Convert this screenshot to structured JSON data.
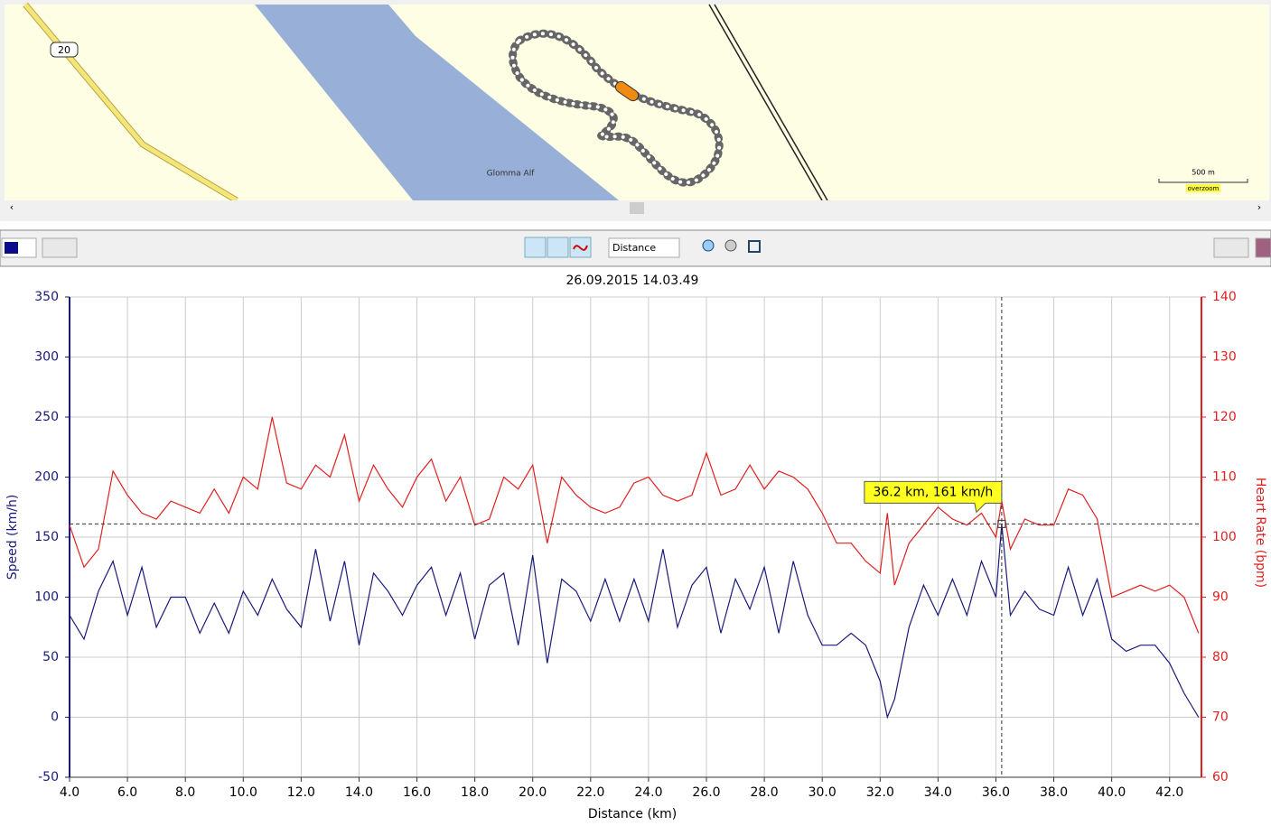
{
  "map": {
    "road_label": "20",
    "place_label": "Glomma Alf",
    "scale_label": "500 m",
    "zoom_label": "overzoom"
  },
  "toolbar": {
    "x_axis_select": "Distance"
  },
  "chart_data": {
    "type": "line",
    "title": "26.09.2015 14.03.49",
    "x_label": "Distance (km)",
    "y_label": "Speed (km/h)",
    "y2_label": "Heart Rate (bpm)",
    "x": [
      4,
      4.5,
      5,
      5.5,
      6,
      6.5,
      7,
      7.5,
      8,
      8.5,
      9,
      9.5,
      10,
      10.5,
      11,
      11.5,
      12,
      12.5,
      13,
      13.5,
      14,
      14.5,
      15,
      15.5,
      16,
      16.5,
      17,
      17.5,
      18,
      18.5,
      19,
      19.5,
      20,
      20.5,
      21,
      21.5,
      22,
      22.5,
      23,
      23.5,
      24,
      24.5,
      25,
      25.5,
      26,
      26.5,
      27,
      27.5,
      28,
      28.5,
      29,
      29.5,
      30,
      30.5,
      31,
      31.5,
      32,
      32.25,
      32.5,
      33,
      33.5,
      34,
      34.5,
      35,
      35.5,
      36,
      36.2,
      36.5,
      37,
      37.5,
      38,
      38.5,
      39,
      39.5,
      40,
      40.5,
      41,
      41.5,
      42,
      42.5,
      43
    ],
    "series": [
      {
        "name": "Speed",
        "color": "#1a1a7a",
        "values": [
          85,
          65,
          105,
          130,
          85,
          125,
          75,
          100,
          100,
          70,
          95,
          70,
          105,
          85,
          115,
          90,
          75,
          140,
          80,
          130,
          60,
          120,
          105,
          85,
          110,
          125,
          85,
          120,
          65,
          110,
          120,
          60,
          135,
          45,
          115,
          105,
          80,
          115,
          80,
          115,
          80,
          140,
          75,
          110,
          125,
          70,
          115,
          90,
          125,
          70,
          130,
          85,
          60,
          60,
          70,
          60,
          30,
          0,
          15,
          75,
          110,
          85,
          115,
          85,
          130,
          100,
          161,
          85,
          105,
          90,
          85,
          125,
          85,
          115,
          65,
          55,
          60,
          60,
          45,
          20,
          0
        ]
      },
      {
        "name": "Heart Rate",
        "color": "#e02020",
        "axis": "y2",
        "values": [
          102,
          95,
          98,
          111,
          107,
          104,
          103,
          106,
          105,
          104,
          108,
          104,
          110,
          108,
          120,
          109,
          108,
          112,
          110,
          117,
          106,
          112,
          108,
          105,
          110,
          113,
          106,
          110,
          102,
          103,
          110,
          108,
          112,
          99,
          110,
          107,
          105,
          104,
          105,
          109,
          110,
          107,
          106,
          107,
          114,
          107,
          108,
          112,
          108,
          111,
          110,
          108,
          104,
          99,
          99,
          96,
          94,
          104,
          92,
          99,
          102,
          105,
          103,
          102,
          104,
          100,
          106,
          98,
          103,
          102,
          102,
          108,
          107,
          103,
          90,
          91,
          92,
          91,
          92,
          90,
          84
        ]
      }
    ],
    "xlim": [
      4,
      43.1
    ],
    "xticks": [
      {
        "value": 4,
        "label": "4.0"
      },
      {
        "value": 6,
        "label": "6.0"
      },
      {
        "value": 8,
        "label": "8.0"
      },
      {
        "value": 10,
        "label": "10.0"
      },
      {
        "value": 12,
        "label": "12.0"
      },
      {
        "value": 14,
        "label": "14.0"
      },
      {
        "value": 16,
        "label": "16.0"
      },
      {
        "value": 18,
        "label": "18.0"
      },
      {
        "value": 20,
        "label": "20.0"
      },
      {
        "value": 22,
        "label": "22.0"
      },
      {
        "value": 24,
        "label": "24.0"
      },
      {
        "value": 26,
        "label": "26.0"
      },
      {
        "value": 28,
        "label": "28.0"
      },
      {
        "value": 30,
        "label": "30.0"
      },
      {
        "value": 32,
        "label": "32.0"
      },
      {
        "value": 34,
        "label": "34.0"
      },
      {
        "value": 36,
        "label": "36.0"
      },
      {
        "value": 38,
        "label": "38.0"
      },
      {
        "value": 40,
        "label": "40.0"
      },
      {
        "value": 42,
        "label": "42.0"
      }
    ],
    "ylim": [
      -50,
      350
    ],
    "yticks": [
      -50,
      0,
      50,
      100,
      150,
      200,
      250,
      300,
      350
    ],
    "y2lim": [
      60,
      140
    ],
    "y2ticks": [
      60,
      70,
      80,
      90,
      100,
      110,
      120,
      130,
      140
    ],
    "grid": true,
    "annotation": {
      "text": "36.2 km, 161 km/h",
      "x": 36.2,
      "y": 161
    }
  }
}
